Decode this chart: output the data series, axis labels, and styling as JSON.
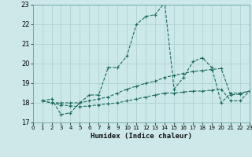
{
  "xlabel": "Humidex (Indice chaleur)",
  "xlim": [
    0,
    23
  ],
  "ylim": [
    17,
    23
  ],
  "xticks": [
    0,
    1,
    2,
    3,
    4,
    5,
    6,
    7,
    8,
    9,
    10,
    11,
    12,
    13,
    14,
    15,
    16,
    17,
    18,
    19,
    20,
    21,
    22,
    23
  ],
  "yticks": [
    17,
    18,
    19,
    20,
    21,
    22,
    23
  ],
  "bg_color": "#cce8e8",
  "grid_color": "#aacece",
  "line_color": "#1a6b5a",
  "lines": [
    {
      "x": [
        1,
        2,
        3,
        4,
        5,
        6,
        7,
        8,
        9,
        10,
        11,
        12,
        13,
        14,
        15,
        16,
        17,
        18,
        19,
        20,
        21,
        22,
        23
      ],
      "y": [
        18.1,
        18.2,
        17.4,
        17.5,
        18.0,
        18.4,
        18.4,
        19.8,
        19.8,
        20.4,
        22.0,
        22.4,
        22.5,
        23.1,
        18.7,
        19.3,
        20.1,
        20.3,
        19.8,
        18.0,
        18.5,
        18.5,
        18.6
      ]
    },
    {
      "x": [
        1,
        2,
        3,
        4,
        5,
        6,
        7,
        8,
        9,
        10,
        11,
        12,
        13,
        14,
        15,
        16,
        17,
        18,
        19,
        20,
        21,
        22,
        23
      ],
      "y": [
        18.1,
        18.0,
        18.0,
        18.0,
        18.0,
        18.1,
        18.2,
        18.3,
        18.5,
        18.7,
        18.85,
        19.0,
        19.1,
        19.3,
        19.4,
        19.5,
        19.6,
        19.65,
        19.7,
        19.75,
        18.4,
        18.45,
        18.6
      ]
    },
    {
      "x": [
        1,
        2,
        3,
        4,
        5,
        6,
        7,
        8,
        9,
        10,
        11,
        12,
        13,
        14,
        15,
        16,
        17,
        18,
        19,
        20,
        21,
        22,
        23
      ],
      "y": [
        18.1,
        18.0,
        17.9,
        17.85,
        17.8,
        17.85,
        17.9,
        17.95,
        18.0,
        18.1,
        18.2,
        18.3,
        18.4,
        18.5,
        18.5,
        18.55,
        18.6,
        18.6,
        18.65,
        18.7,
        18.1,
        18.1,
        18.6
      ]
    }
  ]
}
